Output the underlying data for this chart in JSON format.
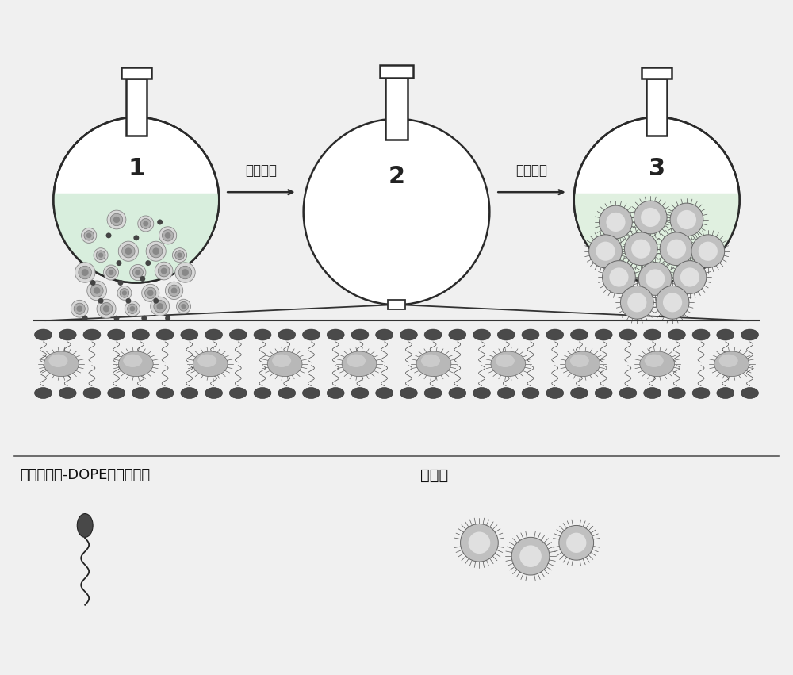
{
  "bg_color": "#f0f0f0",
  "flask_face": "#ffffff",
  "flask_edge": "#2a2a2a",
  "liquid1_color": "#d8eedd",
  "liquid3_color": "#e0f0e0",
  "arrow_color": "#2a2a2a",
  "head_color": "#4a4a4a",
  "head_edge": "#2a2a2a",
  "ps_color": "#c0c0c0",
  "ps_highlight": "#e0e0e0",
  "ps_edge": "#555555",
  "chain_color": "#2a2a2a",
  "text_label1": "溶剂蒸发",
  "text_label2": "加水超声",
  "flask1_label": "1",
  "flask2_label": "2",
  "flask3_label": "3",
  "legend_text1": "聚马来酸酸-DOPE接枝聚合物",
  "legend_text2": "光敏剂"
}
